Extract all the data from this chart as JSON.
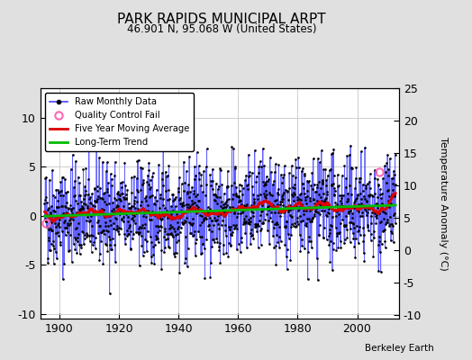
{
  "title": "PARK RAPIDS MUNICIPAL ARPT",
  "subtitle": "46.901 N, 95.068 W (United States)",
  "ylabel": "Temperature Anomaly (°C)",
  "watermark": "Berkeley Earth",
  "year_start": 1895,
  "year_end": 2011,
  "ylim_left": [
    -10.5,
    13.0
  ],
  "ylim_right": [
    -15.5,
    8.0
  ],
  "yticks_left": [
    -10,
    -5,
    0,
    5,
    10
  ],
  "yticks_right": [
    -10,
    -5,
    0,
    5,
    10,
    15,
    20,
    25
  ],
  "xticks": [
    1900,
    1920,
    1940,
    1960,
    1980,
    2000
  ],
  "bg_color": "#e0e0e0",
  "plot_bg_color": "#ffffff",
  "raw_color": "#4444ff",
  "moving_avg_color": "#dd0000",
  "trend_color": "#00bb00",
  "qc_color_near_start": "#ff69b4",
  "qc_color_near_end": "#ff69b4",
  "seed": 42,
  "n_months": 1416,
  "moving_avg_window": 60,
  "raw_std": 2.5,
  "trend_slope": 0.007,
  "qc_points": [
    [
      1895.5,
      -0.8
    ],
    [
      2007.5,
      4.5
    ]
  ]
}
